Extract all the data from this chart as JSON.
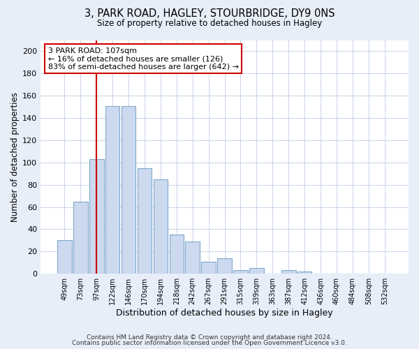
{
  "title": "3, PARK ROAD, HAGLEY, STOURBRIDGE, DY9 0NS",
  "subtitle": "Size of property relative to detached houses in Hagley",
  "xlabel": "Distribution of detached houses by size in Hagley",
  "ylabel": "Number of detached properties",
  "bar_labels": [
    "49sqm",
    "73sqm",
    "97sqm",
    "122sqm",
    "146sqm",
    "170sqm",
    "194sqm",
    "218sqm",
    "242sqm",
    "267sqm",
    "291sqm",
    "315sqm",
    "339sqm",
    "363sqm",
    "387sqm",
    "412sqm",
    "436sqm",
    "460sqm",
    "484sqm",
    "508sqm",
    "532sqm"
  ],
  "bar_values": [
    30,
    65,
    103,
    151,
    151,
    95,
    85,
    35,
    29,
    11,
    14,
    3,
    5,
    0,
    3,
    2,
    0,
    0,
    0,
    0,
    0
  ],
  "bar_color": "#ccd9ee",
  "bar_edge_color": "#7fa8d0",
  "vline_x": 2,
  "vline_color": "#cc0000",
  "annotation_text": "3 PARK ROAD: 107sqm\n← 16% of detached houses are smaller (126)\n83% of semi-detached houses are larger (642) →",
  "annotation_box_color": "white",
  "annotation_box_edge": "#cc0000",
  "ylim": [
    0,
    210
  ],
  "yticks": [
    0,
    20,
    40,
    60,
    80,
    100,
    120,
    140,
    160,
    180,
    200
  ],
  "footer1": "Contains HM Land Registry data © Crown copyright and database right 2024.",
  "footer2": "Contains public sector information licensed under the Open Government Licence v3.0.",
  "bg_color": "#e8eef8",
  "plot_bg_color": "#ffffff",
  "grid_color": "#c8d4e8"
}
